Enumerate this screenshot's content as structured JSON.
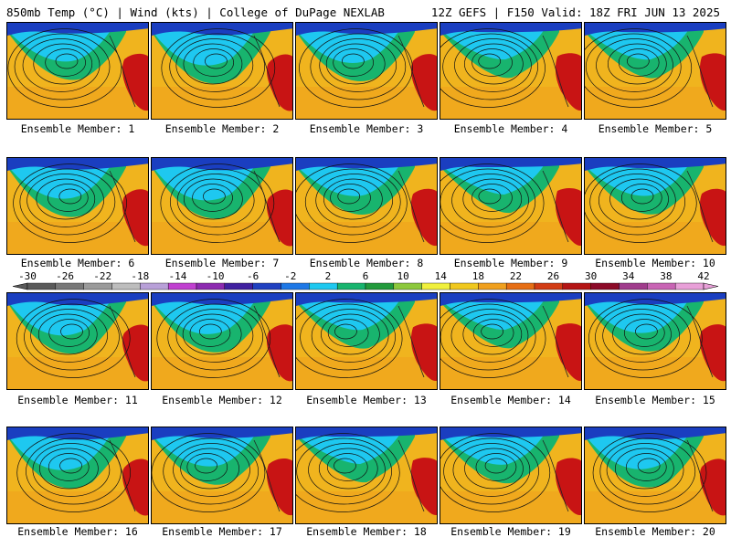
{
  "header": {
    "left": "850mb Temp (°C) | Wind (kts) | College of DuPage NEXLAB",
    "right": "12Z GEFS | F150 Valid: 18Z FRI JUN 13 2025"
  },
  "members": [
    "Ensemble Member: 1",
    "Ensemble Member: 2",
    "Ensemble Member: 3",
    "Ensemble Member: 4",
    "Ensemble Member: 5",
    "Ensemble Member: 6",
    "Ensemble Member: 7",
    "Ensemble Member: 8",
    "Ensemble Member: 9",
    "Ensemble Member: 10",
    "Ensemble Member: 11",
    "Ensemble Member: 12",
    "Ensemble Member: 13",
    "Ensemble Member: 14",
    "Ensemble Member: 15",
    "Ensemble Member: 16",
    "Ensemble Member: 17",
    "Ensemble Member: 18",
    "Ensemble Member: 19",
    "Ensemble Member: 20"
  ],
  "colorbar": {
    "ticks": [
      "-30",
      "-26",
      "-22",
      "-18",
      "-14",
      "-10",
      "-6",
      "-2",
      "2",
      "6",
      "10",
      "14",
      "18",
      "22",
      "26",
      "30",
      "34",
      "38",
      "42"
    ],
    "colors": [
      "#5a5a5a",
      "#787878",
      "#9a9a9a",
      "#bdbdbd",
      "#b8a0d8",
      "#c040d0",
      "#8c2ab0",
      "#4020a0",
      "#2040c0",
      "#1e78e6",
      "#1ec8f0",
      "#18b46e",
      "#229a3c",
      "#8cc83c",
      "#f0f03c",
      "#f0c81e",
      "#f0a01e",
      "#e66e14",
      "#d23c14",
      "#b41414",
      "#8c0a28",
      "#a03c8c",
      "#c864b4",
      "#e8a0d8"
    ]
  },
  "map_colors": {
    "cold": "#1a3ec0",
    "cool": "#1ec8f0",
    "mild": "#18b46e",
    "warm": "#f0a01e",
    "hot": "#c81414",
    "base": "#f0b41e"
  }
}
